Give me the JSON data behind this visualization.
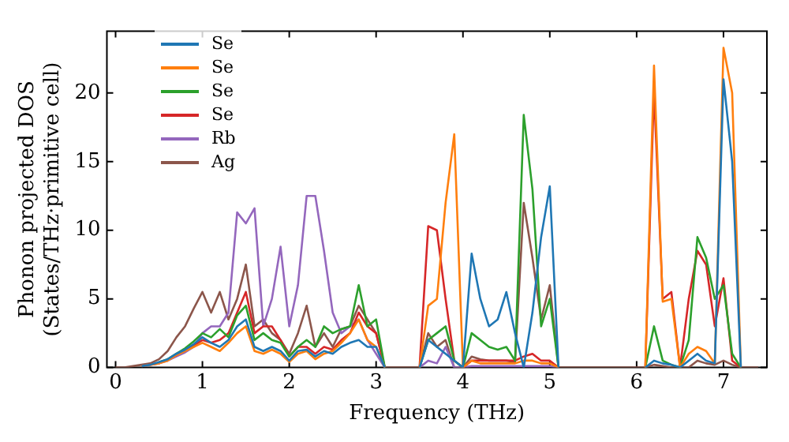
{
  "chart_data": {
    "type": "line",
    "xlabel": "Frequency (THz)",
    "ylabel": "Phonon projected DOS\n(States/THz·primitive cell)",
    "x": [
      0,
      0.1,
      0.2,
      0.3,
      0.4,
      0.5,
      0.6,
      0.7,
      0.8,
      0.9,
      1.0,
      1.1,
      1.2,
      1.3,
      1.4,
      1.5,
      1.6,
      1.7,
      1.8,
      1.9,
      2.0,
      2.1,
      2.2,
      2.3,
      2.4,
      2.5,
      2.6,
      2.7,
      2.8,
      2.9,
      3.0,
      3.1,
      3.2,
      3.3,
      3.4,
      3.5,
      3.6,
      3.7,
      3.8,
      3.9,
      4.0,
      4.1,
      4.2,
      4.3,
      4.4,
      4.5,
      4.6,
      4.7,
      4.8,
      4.9,
      5.0,
      5.1,
      5.2,
      5.3,
      5.4,
      5.5,
      5.6,
      5.7,
      5.8,
      5.9,
      6.0,
      6.1,
      6.2,
      6.3,
      6.4,
      6.5,
      6.6,
      6.7,
      6.8,
      6.9,
      7.0,
      7.1,
      7.2,
      7.3,
      7.4
    ],
    "series": [
      {
        "name": "Se",
        "color": "#1f77b4",
        "values": [
          null,
          null,
          null,
          0.1,
          0.2,
          0.4,
          0.6,
          1.0,
          1.3,
          1.7,
          2.2,
          1.8,
          1.5,
          2,
          3,
          3.5,
          1.5,
          1.2,
          1.5,
          1.2,
          0.5,
          1.2,
          1.3,
          0.8,
          1.2,
          1,
          1.5,
          1.8,
          2,
          1.5,
          1.5,
          0,
          null,
          null,
          null,
          0,
          2,
          1.5,
          1,
          0.5,
          0,
          8.3,
          5,
          3,
          3.5,
          5.5,
          2.5,
          0,
          4,
          9.5,
          13.2,
          0,
          null,
          null,
          null,
          null,
          null,
          null,
          null,
          null,
          null,
          0,
          0.5,
          0.3,
          0.2,
          0,
          0.5,
          1,
          0.5,
          0.3,
          21,
          15,
          0,
          null,
          null
        ]
      },
      {
        "name": "Se",
        "color": "#ff7f0e",
        "values": [
          null,
          null,
          null,
          0.1,
          0.2,
          0.3,
          0.5,
          0.9,
          1.2,
          1.5,
          1.8,
          1.5,
          1.2,
          1.8,
          2.5,
          3,
          1.2,
          1,
          1.3,
          1,
          0.4,
          1,
          1.2,
          0.6,
          1,
          1.2,
          1.8,
          2.5,
          3.5,
          2,
          1.5,
          0,
          null,
          null,
          null,
          0,
          4.5,
          5,
          12,
          17,
          0,
          0.5,
          0.3,
          0.3,
          0.3,
          0.3,
          0.3,
          0.5,
          0.5,
          0.3,
          0.3,
          0,
          null,
          null,
          null,
          null,
          null,
          null,
          null,
          null,
          null,
          0,
          22,
          4.8,
          5,
          0,
          1,
          1.5,
          1.2,
          0.3,
          23.3,
          20,
          0,
          null,
          null
        ]
      },
      {
        "name": "Se",
        "color": "#2ca02c",
        "values": [
          null,
          null,
          null,
          null,
          null,
          0.4,
          0.6,
          1.0,
          1.4,
          1.9,
          2.5,
          2.2,
          2.8,
          2.2,
          3.8,
          4.5,
          2,
          2.5,
          2,
          1.8,
          0.8,
          1.5,
          2,
          1.5,
          3,
          2.5,
          2.8,
          3,
          6,
          3,
          3.5,
          0,
          null,
          null,
          null,
          0,
          2,
          2.5,
          3,
          0.5,
          0,
          2.5,
          2,
          1.5,
          1.3,
          1.5,
          0.5,
          18.4,
          13,
          3,
          5,
          0,
          null,
          null,
          null,
          null,
          null,
          null,
          null,
          null,
          null,
          0,
          3,
          0.5,
          0.2,
          0,
          2,
          9.5,
          8,
          5,
          6,
          1,
          0,
          null,
          null
        ]
      },
      {
        "name": "Se",
        "color": "#d62728",
        "values": [
          null,
          null,
          null,
          0.1,
          0.2,
          0.3,
          0.6,
          0.9,
          1.3,
          1.6,
          2,
          1.8,
          2,
          2.5,
          4,
          5.5,
          2.5,
          3,
          3,
          2,
          0.8,
          1.5,
          1.5,
          1,
          1.5,
          1.3,
          2,
          2.5,
          4,
          3,
          2.5,
          0,
          null,
          null,
          null,
          0,
          10.3,
          10,
          5,
          0.5,
          0,
          0.5,
          0.5,
          0.5,
          0.5,
          0.5,
          0.5,
          0.8,
          1,
          0.5,
          0.5,
          0,
          null,
          null,
          null,
          null,
          null,
          null,
          null,
          null,
          null,
          0,
          20.2,
          5,
          5.5,
          0,
          5,
          8.5,
          7.5,
          3,
          6.5,
          0.5,
          0,
          null,
          null
        ]
      },
      {
        "name": "Rb",
        "color": "#9467bd",
        "values": [
          null,
          null,
          null,
          null,
          null,
          0.3,
          0.5,
          0.8,
          1.1,
          1.5,
          2.5,
          3,
          3,
          4,
          11.3,
          10.5,
          11.6,
          3,
          5,
          8.8,
          3,
          6,
          12.5,
          12.5,
          8.5,
          4,
          2.5,
          3,
          3.5,
          2,
          1,
          0,
          null,
          null,
          null,
          0,
          0.5,
          0.3,
          1.5,
          0,
          0,
          0.1,
          0.1,
          0.1,
          0.1,
          0.1,
          0.1,
          0.1,
          0.1,
          0.1,
          0.1,
          0,
          null,
          null,
          null,
          null,
          null,
          null,
          null,
          null,
          null,
          null,
          null,
          null,
          null,
          null,
          null,
          null,
          null,
          null,
          null,
          null,
          null,
          null,
          null
        ]
      },
      {
        "name": "Ag",
        "color": "#8c564b",
        "values": [
          0,
          0,
          0.1,
          0.2,
          0.3,
          0.6,
          1.2,
          2.2,
          3,
          4.3,
          5.5,
          4,
          5.5,
          3.5,
          5,
          7.5,
          3,
          3.5,
          2.5,
          2,
          1,
          2.5,
          4.5,
          1.5,
          2.5,
          1.5,
          2.8,
          3,
          4.5,
          3.5,
          2.5,
          0,
          0,
          0,
          0,
          0,
          2.5,
          1.5,
          2,
          0,
          0,
          0.8,
          0.6,
          0.5,
          0.5,
          0.5,
          0.4,
          12,
          8,
          3.5,
          6,
          0,
          0,
          0,
          0,
          0,
          0,
          0,
          0,
          0,
          0,
          0,
          0.2,
          0.1,
          0,
          0,
          0,
          0.5,
          0.3,
          0.2,
          0.5,
          0.2,
          0,
          0,
          0
        ]
      }
    ],
    "xlim": [
      -0.1,
      7.5
    ],
    "xticks": [
      0,
      1,
      2,
      3,
      4,
      5,
      6,
      7
    ],
    "ylim": [
      0,
      24.5
    ],
    "yticks": [
      0,
      5,
      10,
      15,
      20
    ],
    "grid": false,
    "legend": "top left"
  }
}
